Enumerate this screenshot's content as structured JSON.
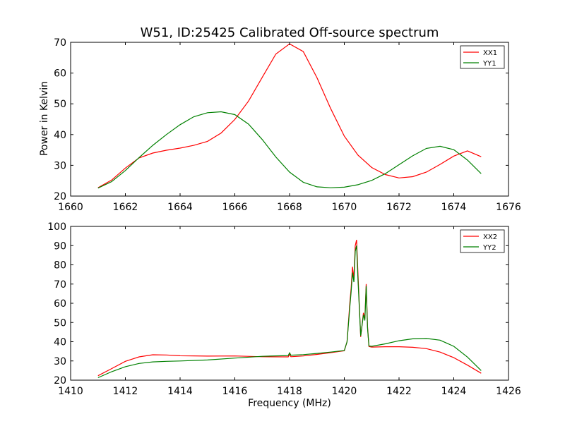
{
  "figure": {
    "title": "W51, ID:25425 Calibrated Off-source spectrum",
    "ylabel": "Power in Kelvin",
    "xlabel": "Frequency (MHz)"
  },
  "chart_data": [
    {
      "type": "line",
      "title": "W51, ID:25425 Calibrated Off-source spectrum",
      "xlabel": "",
      "ylabel": "Power in Kelvin",
      "xlim": [
        1660,
        1676
      ],
      "ylim": [
        20,
        70
      ],
      "xticks": [
        1660,
        1662,
        1664,
        1666,
        1668,
        1670,
        1672,
        1674,
        1676
      ],
      "yticks": [
        20,
        30,
        40,
        50,
        60,
        70
      ],
      "grid": false,
      "legend": "top-right",
      "series": [
        {
          "name": "XX1",
          "color": "#ff0000",
          "x": [
            1661.0,
            1661.5,
            1662.0,
            1662.5,
            1663.0,
            1663.5,
            1664.0,
            1664.5,
            1665.0,
            1665.5,
            1666.0,
            1666.5,
            1667.0,
            1667.5,
            1668.0,
            1668.5,
            1669.0,
            1669.5,
            1670.0,
            1670.5,
            1671.0,
            1671.5,
            1672.0,
            1672.5,
            1673.0,
            1673.5,
            1674.0,
            1674.5,
            1675.0
          ],
          "y": [
            22.7,
            25.2,
            29.1,
            32.4,
            34.0,
            34.9,
            35.6,
            36.5,
            37.8,
            40.5,
            44.9,
            50.9,
            58.6,
            66.2,
            69.5,
            67.0,
            58.5,
            48.5,
            39.5,
            33.3,
            29.3,
            27.0,
            25.9,
            26.3,
            27.8,
            30.3,
            33.0,
            34.7,
            32.8
          ]
        },
        {
          "name": "YY1",
          "color": "#008000",
          "x": [
            1661.0,
            1661.5,
            1662.0,
            1662.5,
            1663.0,
            1663.5,
            1664.0,
            1664.5,
            1665.0,
            1665.5,
            1666.0,
            1666.5,
            1667.0,
            1667.5,
            1668.0,
            1668.5,
            1669.0,
            1669.5,
            1670.0,
            1670.5,
            1671.0,
            1671.5,
            1672.0,
            1672.5,
            1673.0,
            1673.5,
            1674.0,
            1674.5,
            1675.0
          ],
          "y": [
            22.6,
            24.7,
            28.3,
            32.5,
            36.5,
            40.0,
            43.2,
            45.8,
            47.1,
            47.4,
            46.5,
            43.4,
            38.4,
            32.7,
            27.8,
            24.5,
            23.0,
            22.7,
            22.9,
            23.7,
            25.1,
            27.3,
            30.2,
            33.1,
            35.5,
            36.2,
            35.1,
            31.7,
            27.3
          ]
        }
      ]
    },
    {
      "type": "line",
      "title": "",
      "xlabel": "Frequency (MHz)",
      "ylabel": "",
      "xlim": [
        1410,
        1426
      ],
      "ylim": [
        20,
        100
      ],
      "xticks": [
        1410,
        1412,
        1414,
        1416,
        1418,
        1420,
        1422,
        1424,
        1426
      ],
      "yticks": [
        20,
        30,
        40,
        50,
        60,
        70,
        80,
        90,
        100
      ],
      "grid": false,
      "legend": "top-right",
      "series": [
        {
          "name": "XX2",
          "color": "#ff0000",
          "x": [
            1411.0,
            1411.5,
            1412.0,
            1412.5,
            1413.0,
            1413.5,
            1414.0,
            1415.0,
            1416.0,
            1417.0,
            1417.95,
            1418.0,
            1418.05,
            1418.5,
            1419.0,
            1419.5,
            1420.0,
            1420.1,
            1420.2,
            1420.25,
            1420.3,
            1420.35,
            1420.4,
            1420.45,
            1420.5,
            1420.6,
            1420.7,
            1420.75,
            1420.8,
            1420.85,
            1420.9,
            1421.0,
            1421.5,
            1422.0,
            1422.5,
            1423.0,
            1423.5,
            1424.0,
            1424.5,
            1425.0
          ],
          "y": [
            22.3,
            26.0,
            29.8,
            32.1,
            33.2,
            33.1,
            32.7,
            32.5,
            32.6,
            32.2,
            32.1,
            33.4,
            32.2,
            32.6,
            33.4,
            34.3,
            35.3,
            40.0,
            60.0,
            68.0,
            79.0,
            73.0,
            90.0,
            93.0,
            75.0,
            42.5,
            55.0,
            52.0,
            70.0,
            48.0,
            37.5,
            37.2,
            37.4,
            37.4,
            37.1,
            36.4,
            34.6,
            31.7,
            27.8,
            23.6
          ]
        },
        {
          "name": "YY2",
          "color": "#008000",
          "x": [
            1411.0,
            1411.5,
            1412.0,
            1412.5,
            1413.0,
            1413.5,
            1414.0,
            1415.0,
            1416.0,
            1417.0,
            1417.95,
            1418.0,
            1418.05,
            1418.5,
            1419.0,
            1419.5,
            1420.0,
            1420.1,
            1420.2,
            1420.25,
            1420.3,
            1420.35,
            1420.4,
            1420.45,
            1420.5,
            1420.6,
            1420.7,
            1420.75,
            1420.8,
            1420.85,
            1420.9,
            1421.0,
            1421.5,
            1422.0,
            1422.5,
            1423.0,
            1423.5,
            1424.0,
            1424.5,
            1425.0
          ],
          "y": [
            21.3,
            24.4,
            27.0,
            28.7,
            29.5,
            29.8,
            30.0,
            30.5,
            31.5,
            32.4,
            32.8,
            34.2,
            33.0,
            33.3,
            33.9,
            34.6,
            35.4,
            40.0,
            58.0,
            66.0,
            76.0,
            71.0,
            87.0,
            90.0,
            72.0,
            43.0,
            54.0,
            51.0,
            69.0,
            47.0,
            37.8,
            37.6,
            38.9,
            40.5,
            41.5,
            41.7,
            40.8,
            37.6,
            32.0,
            25.0
          ]
        }
      ]
    }
  ]
}
